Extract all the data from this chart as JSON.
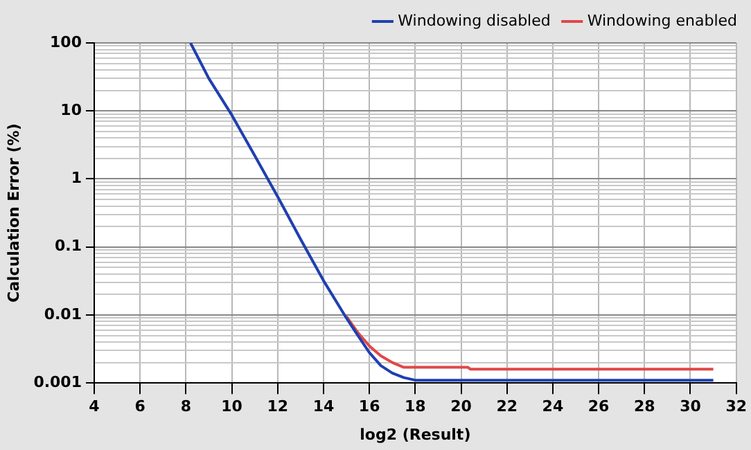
{
  "chart_data": {
    "type": "line",
    "xlabel": "log2 (Result)",
    "ylabel": "Calculation Error (%)",
    "xlim": [
      4,
      32
    ],
    "xticks": [
      4,
      6,
      8,
      10,
      12,
      14,
      16,
      18,
      20,
      22,
      24,
      26,
      28,
      30,
      32
    ],
    "ylim": [
      0.001,
      100
    ],
    "yticks": [
      0.001,
      {
        "value": 0.002,
        "label": null
      },
      {
        "value": 0.003,
        "label": null
      },
      {
        "value": 0.004,
        "label": null
      },
      {
        "value": 0.005,
        "label": null
      },
      {
        "value": 0.006,
        "label": null
      },
      {
        "value": 0.007,
        "label": null
      },
      {
        "value": 0.008,
        "label": null
      },
      {
        "value": 0.009,
        "label": null
      },
      0.01,
      {
        "value": 0.02,
        "label": null
      },
      {
        "value": 0.03,
        "label": null
      },
      {
        "value": 0.04,
        "label": null
      },
      {
        "value": 0.05,
        "label": null
      },
      {
        "value": 0.06,
        "label": null
      },
      {
        "value": 0.07,
        "label": null
      },
      {
        "value": 0.08,
        "label": null
      },
      {
        "value": 0.09,
        "label": null
      },
      0.1,
      {
        "value": 0.2,
        "label": null
      },
      {
        "value": 0.3,
        "label": null
      },
      {
        "value": 0.4,
        "label": null
      },
      {
        "value": 0.5,
        "label": null
      },
      {
        "value": 0.6,
        "label": null
      },
      {
        "value": 0.7,
        "label": null
      },
      {
        "value": 0.8,
        "label": null
      },
      {
        "value": 0.9,
        "label": null
      },
      1,
      {
        "value": 2,
        "label": null
      },
      {
        "value": 3,
        "label": null
      },
      {
        "value": 4,
        "label": null
      },
      {
        "value": 5,
        "label": null
      },
      {
        "value": 6,
        "label": null
      },
      {
        "value": 7,
        "label": null
      },
      {
        "value": 8,
        "label": null
      },
      {
        "value": 9,
        "label": null
      },
      10,
      {
        "value": 20,
        "label": null
      },
      {
        "value": 30,
        "label": null
      },
      {
        "value": 40,
        "label": null
      },
      {
        "value": 50,
        "label": null
      },
      {
        "value": 60,
        "label": null
      },
      {
        "value": 70,
        "label": null
      },
      {
        "value": 80,
        "label": null
      },
      {
        "value": 90,
        "label": null
      },
      100
    ],
    "log": "y",
    "grid": true,
    "legend": "top right",
    "marker": "none",
    "line_style": "solid",
    "series": [
      {
        "name": "Windowing disabled",
        "color": "#1f3fb0",
        "x": [
          8.2,
          9,
          10,
          11,
          12,
          13,
          14,
          15,
          15.5,
          16,
          16.5,
          17,
          17.5,
          18,
          19,
          31
        ],
        "values": [
          100,
          30,
          8.7,
          2.2,
          0.55,
          0.13,
          0.032,
          0.009,
          0.005,
          0.0028,
          0.0018,
          0.0014,
          0.0012,
          0.0011,
          0.0011,
          0.0011
        ]
      },
      {
        "name": "Windowing enabled",
        "color": "#e04848",
        "x": [
          15,
          15.5,
          16,
          16.5,
          17,
          17.5,
          18,
          20.3,
          20.4,
          31
        ],
        "values": [
          0.0095,
          0.0055,
          0.0035,
          0.0025,
          0.002,
          0.0017,
          0.0017,
          0.0017,
          0.0016,
          0.0016
        ]
      }
    ]
  }
}
